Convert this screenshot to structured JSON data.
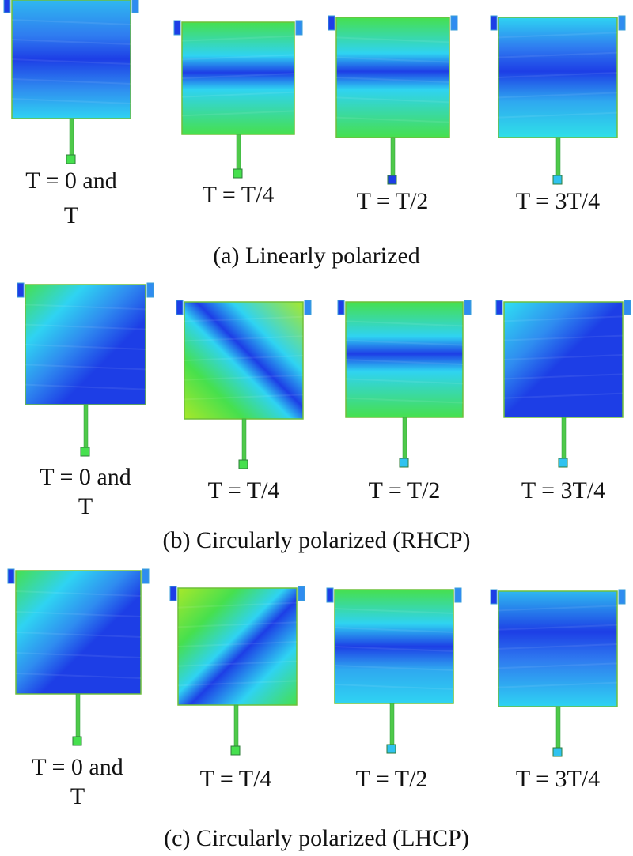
{
  "rows": [
    {
      "caption": "(a)  Linearly polarized",
      "panels": [
        {
          "label_line1": "T = 0 and",
          "label_line2": "T"
        },
        {
          "label_line1": "T = T/4",
          "label_line2": ""
        },
        {
          "label_line1": "T = T/2",
          "label_line2": ""
        },
        {
          "label_line1": "T = 3T/4",
          "label_line2": ""
        }
      ]
    },
    {
      "caption": "(b) Circularly polarized (RHCP)",
      "panels": [
        {
          "label_line1": "T = 0 and",
          "label_line2": "T"
        },
        {
          "label_line1": "T = T/4",
          "label_line2": ""
        },
        {
          "label_line1": "T = T/2",
          "label_line2": ""
        },
        {
          "label_line1": "T = 3T/4",
          "label_line2": ""
        }
      ]
    },
    {
      "caption": "(c) Circularly polarized (LHCP)",
      "panels": [
        {
          "label_line1": "T = 0 and",
          "label_line2": "T"
        },
        {
          "label_line1": "T = T/4",
          "label_line2": ""
        },
        {
          "label_line1": "T = T/2",
          "label_line2": ""
        },
        {
          "label_line1": "T = 3T/4",
          "label_line2": ""
        }
      ]
    }
  ],
  "colors": {
    "dark_blue": "#1d3ee6",
    "mid_blue": "#2f7cf0",
    "cyan": "#2fd3f2",
    "green": "#46e04e",
    "yellow_green": "#a8e82a",
    "border": "#6fbf3a"
  }
}
